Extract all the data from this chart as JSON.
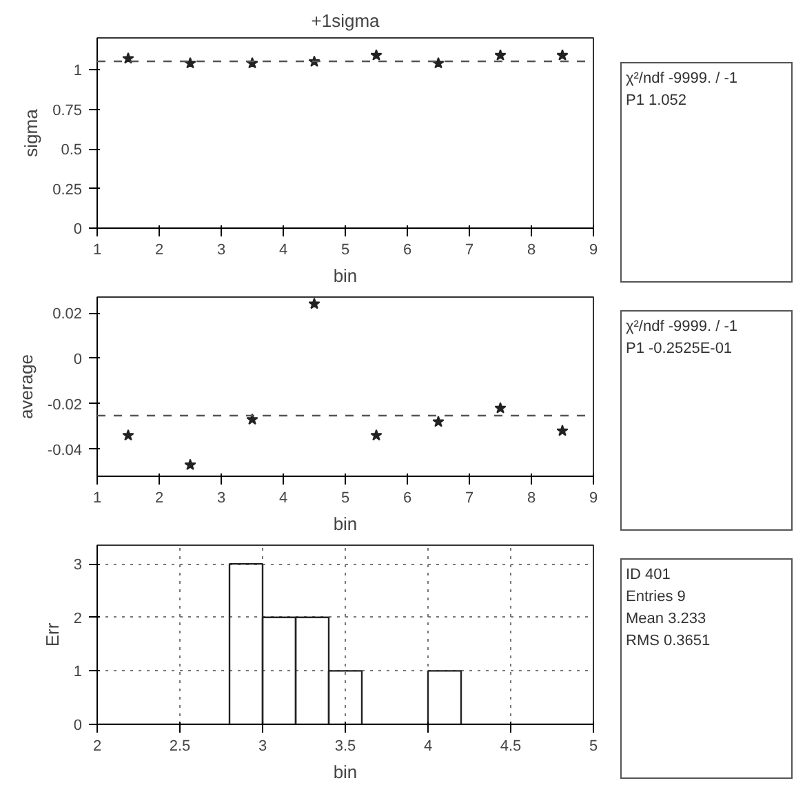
{
  "chart_data": [
    {
      "type": "scatter",
      "title": "+1sigma",
      "xlabel": "bin",
      "ylabel": "sigma",
      "x": [
        1.5,
        2.5,
        3.5,
        4.5,
        5.5,
        6.5,
        7.5,
        8.5
      ],
      "series": [
        {
          "color": "#222222",
          "values": [
            1.07,
            1.04,
            1.04,
            1.05,
            1.09,
            1.04,
            1.09,
            1.09
          ]
        }
      ],
      "marker": "star",
      "xlim": [
        1,
        9
      ],
      "ylim": [
        0,
        1.2
      ],
      "xticks": [
        1,
        2,
        3,
        4,
        5,
        6,
        7,
        8,
        9
      ],
      "yticks": [
        0,
        0.25,
        0.5,
        0.75,
        1
      ],
      "ref_lines": [
        {
          "axis": "y",
          "value": 1.052,
          "color": "#555555",
          "line_style": "dashed"
        }
      ],
      "annotations": [
        "χ²/ndf  -9999.  /  -1",
        "P1  1.052"
      ]
    },
    {
      "type": "scatter",
      "xlabel": "bin",
      "ylabel": "average",
      "x": [
        1.5,
        2.5,
        3.5,
        4.5,
        5.5,
        6.5,
        7.5,
        8.5
      ],
      "series": [
        {
          "color": "#222222",
          "values": [
            -0.034,
            -0.047,
            -0.027,
            0.024,
            -0.034,
            -0.028,
            -0.022,
            -0.032
          ]
        }
      ],
      "marker": "star",
      "xlim": [
        1,
        9
      ],
      "ylim": [
        -0.052,
        0.027
      ],
      "xticks": [
        1,
        2,
        3,
        4,
        5,
        6,
        7,
        8,
        9
      ],
      "yticks": [
        -0.04,
        -0.02,
        0,
        0.02
      ],
      "ref_lines": [
        {
          "axis": "y",
          "value": -0.02525,
          "color": "#555555",
          "line_style": "dashed"
        }
      ],
      "annotations": [
        "χ²/ndf  -9999.  /  -1",
        "P1  -0.2525E-01"
      ]
    },
    {
      "type": "histogram",
      "xlabel": "bin",
      "ylabel": "Err",
      "color": "#222222",
      "bins": [
        2,
        2.2,
        2.4,
        2.6,
        2.8,
        3,
        3.2,
        3.4,
        3.6,
        3.8,
        4,
        4.2,
        4.4,
        4.6,
        4.8,
        5
      ],
      "values": [
        0,
        0,
        0,
        0,
        3,
        2,
        2,
        1,
        0,
        0,
        1,
        0,
        0,
        0,
        0
      ],
      "xlim": [
        2,
        5
      ],
      "ylim": [
        0,
        3.35
      ],
      "xticks": [
        2,
        2.5,
        3,
        3.5,
        4,
        4.5,
        5
      ],
      "yticks": [
        0,
        1,
        2,
        3
      ],
      "grid": true,
      "annotations": [
        "ID  401",
        "Entries  9",
        "Mean  3.233",
        "RMS  0.3651"
      ]
    }
  ]
}
